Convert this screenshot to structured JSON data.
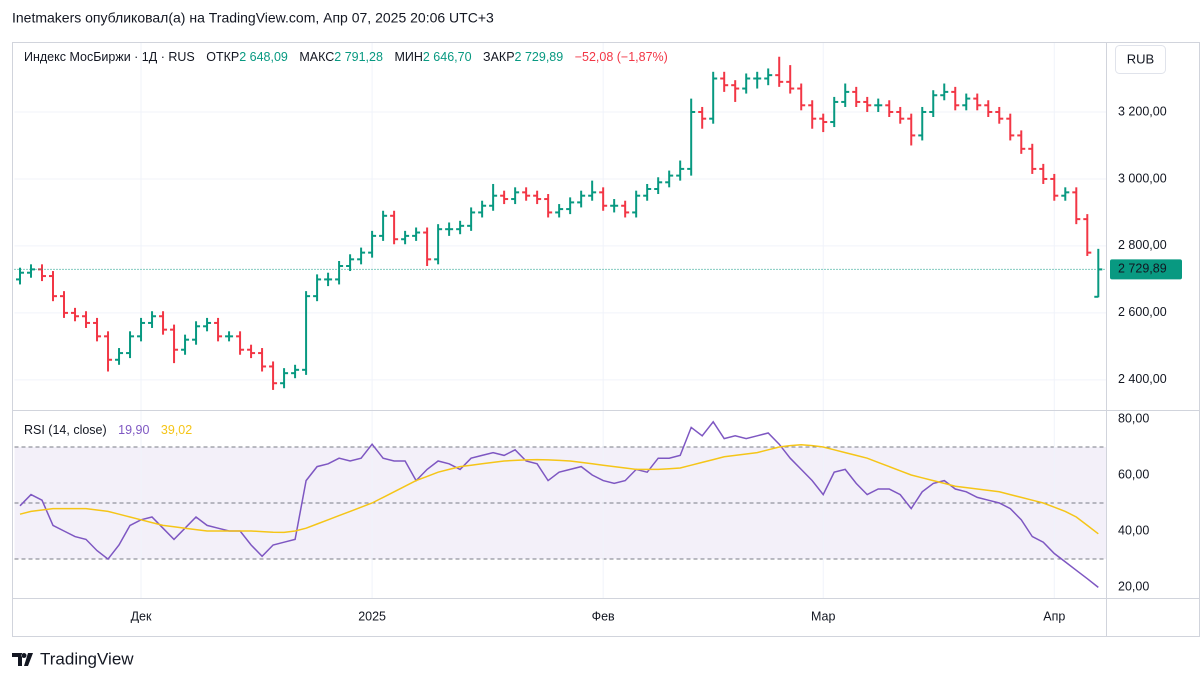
{
  "header": {
    "title": "Inetmakers опубликовал(а) на TradingView.com, Апр 07, 2025 20:06 UTC+3"
  },
  "footer": {
    "logo": "TradingView"
  },
  "currency": "RUB",
  "chart_data": [
    {
      "type": "ohlc",
      "title": "Индекс МосБиржи · 1Д · RUS",
      "legend": [
        {
          "name": "ОТКР",
          "label": "2 648,09"
        },
        {
          "name": "МАКС",
          "label": "2 791,28"
        },
        {
          "name": "МИН",
          "label": "2 646,70"
        },
        {
          "name": "ЗАКР",
          "label": "2 729,89"
        }
      ],
      "change": "−52,08 (−1,87%)",
      "up_color": "#089981",
      "down_color": "#f23645",
      "grid": true,
      "xlim": [
        -0.5,
        98.7
      ],
      "ylim": [
        2310,
        3409
      ],
      "yticks": [
        {
          "value": 2400,
          "label": "2 400,00"
        },
        {
          "value": 2600,
          "label": "2 600,00"
        },
        {
          "value": 2800,
          "label": "2 800,00"
        },
        {
          "value": 3000,
          "label": "3 000,00"
        },
        {
          "value": 3200,
          "label": "3 200,00"
        }
      ],
      "last_price": {
        "value": 2729.89,
        "label": "2 729,89"
      },
      "open": [
        2700,
        2720,
        2730,
        2710,
        2650,
        2600,
        2590,
        2570,
        2530,
        2460,
        2480,
        2530,
        2570,
        2590,
        2550,
        2490,
        2520,
        2560,
        2570,
        2530,
        2530,
        2490,
        2480,
        2440,
        2390,
        2420,
        2430,
        2650,
        2700,
        2700,
        2740,
        2760,
        2780,
        2830,
        2890,
        2820,
        2830,
        2840,
        2760,
        2850,
        2850,
        2860,
        2900,
        2920,
        2950,
        2940,
        2960,
        2950,
        2940,
        2900,
        2910,
        2930,
        2950,
        2960,
        2920,
        2920,
        2900,
        2950,
        2970,
        2990,
        3010,
        3030,
        3200,
        3180,
        3300,
        3280,
        3270,
        3300,
        3300,
        3310,
        3290,
        3270,
        3220,
        3180,
        3170,
        3230,
        3260,
        3230,
        3220,
        3220,
        3200,
        3180,
        3130,
        3200,
        3250,
        3260,
        3220,
        3240,
        3220,
        3200,
        3180,
        3130,
        3090,
        3030,
        3000,
        2950,
        2960,
        2880,
        2648.09
      ],
      "high": [
        2735,
        2745,
        2745,
        2725,
        2665,
        2615,
        2605,
        2585,
        2545,
        2495,
        2545,
        2585,
        2605,
        2605,
        2565,
        2535,
        2575,
        2585,
        2585,
        2545,
        2545,
        2505,
        2495,
        2455,
        2435,
        2445,
        2665,
        2715,
        2720,
        2755,
        2775,
        2795,
        2845,
        2905,
        2905,
        2845,
        2855,
        2855,
        2865,
        2870,
        2875,
        2915,
        2935,
        2985,
        2965,
        2975,
        2975,
        2965,
        2955,
        2925,
        2945,
        2965,
        2995,
        2975,
        2940,
        2935,
        2965,
        2985,
        3005,
        3025,
        3055,
        3240,
        3215,
        3320,
        3320,
        3295,
        3315,
        3320,
        3330,
        3365,
        3340,
        3285,
        3235,
        3195,
        3245,
        3285,
        3275,
        3245,
        3240,
        3235,
        3215,
        3195,
        3215,
        3265,
        3285,
        3275,
        3255,
        3255,
        3235,
        3215,
        3195,
        3145,
        3105,
        3045,
        3015,
        2975,
        2975,
        2895,
        2791.28
      ],
      "low": [
        2685,
        2705,
        2695,
        2635,
        2585,
        2575,
        2555,
        2515,
        2425,
        2445,
        2465,
        2515,
        2555,
        2535,
        2450,
        2475,
        2505,
        2545,
        2515,
        2515,
        2475,
        2465,
        2425,
        2370,
        2375,
        2405,
        2415,
        2635,
        2680,
        2685,
        2725,
        2745,
        2765,
        2815,
        2805,
        2805,
        2815,
        2740,
        2745,
        2830,
        2835,
        2845,
        2885,
        2905,
        2925,
        2925,
        2935,
        2925,
        2885,
        2885,
        2895,
        2915,
        2935,
        2905,
        2900,
        2885,
        2885,
        2935,
        2955,
        2975,
        2995,
        3010,
        3150,
        3165,
        3260,
        3230,
        3255,
        3270,
        3280,
        3275,
        3255,
        3205,
        3150,
        3140,
        3155,
        3215,
        3215,
        3200,
        3200,
        3185,
        3165,
        3100,
        3115,
        3185,
        3235,
        3205,
        3205,
        3205,
        3185,
        3165,
        3115,
        3075,
        3015,
        2985,
        2935,
        2935,
        2865,
        2770,
        2646.7
      ],
      "close": [
        2720,
        2730,
        2710,
        2650,
        2600,
        2590,
        2570,
        2530,
        2460,
        2480,
        2530,
        2570,
        2590,
        2550,
        2490,
        2520,
        2560,
        2570,
        2530,
        2530,
        2490,
        2480,
        2440,
        2390,
        2420,
        2430,
        2650,
        2700,
        2700,
        2740,
        2760,
        2780,
        2830,
        2890,
        2820,
        2830,
        2840,
        2760,
        2850,
        2850,
        2860,
        2900,
        2920,
        2950,
        2940,
        2960,
        2950,
        2940,
        2900,
        2910,
        2930,
        2950,
        2960,
        2920,
        2920,
        2900,
        2950,
        2970,
        2990,
        3010,
        3030,
        3200,
        3180,
        3300,
        3280,
        3270,
        3300,
        3300,
        3310,
        3290,
        3270,
        3220,
        3180,
        3170,
        3230,
        3260,
        3230,
        3220,
        3220,
        3200,
        3180,
        3130,
        3200,
        3250,
        3260,
        3220,
        3240,
        3220,
        3200,
        3180,
        3130,
        3090,
        3030,
        3000,
        2950,
        2960,
        2880,
        2780,
        2729.89
      ]
    },
    {
      "type": "line",
      "title": "RSI (14, close)",
      "xlim": [
        -0.5,
        98.7
      ],
      "ylim": [
        16.1,
        83.2
      ],
      "yticks": [
        {
          "value": 20,
          "label": "20,00"
        },
        {
          "value": 40,
          "label": "40,00"
        },
        {
          "value": 60,
          "label": "60,00"
        },
        {
          "value": 80,
          "label": "80,00"
        }
      ],
      "levels": [
        30,
        50,
        70
      ],
      "band": [
        30,
        70
      ],
      "band_color": "#7e57c2",
      "xticks": [
        {
          "value": 11,
          "label": "Дек"
        },
        {
          "value": 32,
          "label": "2025"
        },
        {
          "value": 53,
          "label": "Фев"
        },
        {
          "value": 73,
          "label": "Мар"
        },
        {
          "value": 94,
          "label": "Апр"
        }
      ],
      "series": [
        {
          "color": "#7e57c2",
          "last_label": "19,90",
          "values": [
            49,
            53,
            51,
            42,
            40,
            38,
            37,
            33,
            30,
            35,
            42,
            44,
            45,
            41,
            37,
            41,
            45,
            42,
            41,
            40,
            40,
            35,
            31,
            35,
            36,
            37,
            58,
            63,
            64,
            66,
            65,
            66,
            71,
            66,
            65,
            65,
            58,
            62,
            65,
            64,
            62,
            66,
            67,
            68,
            67,
            69,
            65,
            64,
            58,
            61,
            62,
            63,
            60,
            58,
            57,
            58,
            62,
            61,
            66,
            66,
            67,
            77,
            74,
            79,
            73,
            74,
            73,
            74,
            75,
            71,
            66,
            62,
            58,
            53,
            61,
            62,
            57,
            53,
            55,
            55,
            53,
            48,
            54,
            57,
            58,
            55,
            54,
            52,
            51,
            50,
            48,
            44,
            38,
            36,
            32,
            29,
            26,
            23,
            19.9
          ]
        },
        {
          "color": "#f5c518",
          "last_label": "39,02",
          "values": [
            46,
            47,
            47.5,
            48,
            48,
            48,
            48,
            47.5,
            47,
            46,
            45,
            44,
            43,
            42,
            41.5,
            41,
            40.5,
            40,
            40,
            40,
            40,
            40,
            39.8,
            39.6,
            39.5,
            40,
            41,
            42.5,
            44,
            45.5,
            47,
            48.5,
            50,
            52,
            54,
            56,
            58,
            59.5,
            61,
            62,
            63,
            63.5,
            64,
            64.5,
            65,
            65.2,
            65.4,
            65.5,
            65.4,
            65.2,
            65,
            64.5,
            64,
            63.5,
            63,
            62.5,
            62,
            62,
            62,
            62.2,
            62.5,
            63.5,
            64.5,
            65.5,
            66.5,
            67,
            67.5,
            68,
            69,
            70,
            70.5,
            70.8,
            70.5,
            70,
            69,
            68,
            67,
            66,
            64.5,
            63,
            61.5,
            60,
            59,
            58,
            57,
            56,
            55.5,
            55,
            54.5,
            54,
            53,
            52,
            51,
            50,
            48.5,
            47,
            45,
            42,
            39.02
          ]
        }
      ]
    }
  ]
}
